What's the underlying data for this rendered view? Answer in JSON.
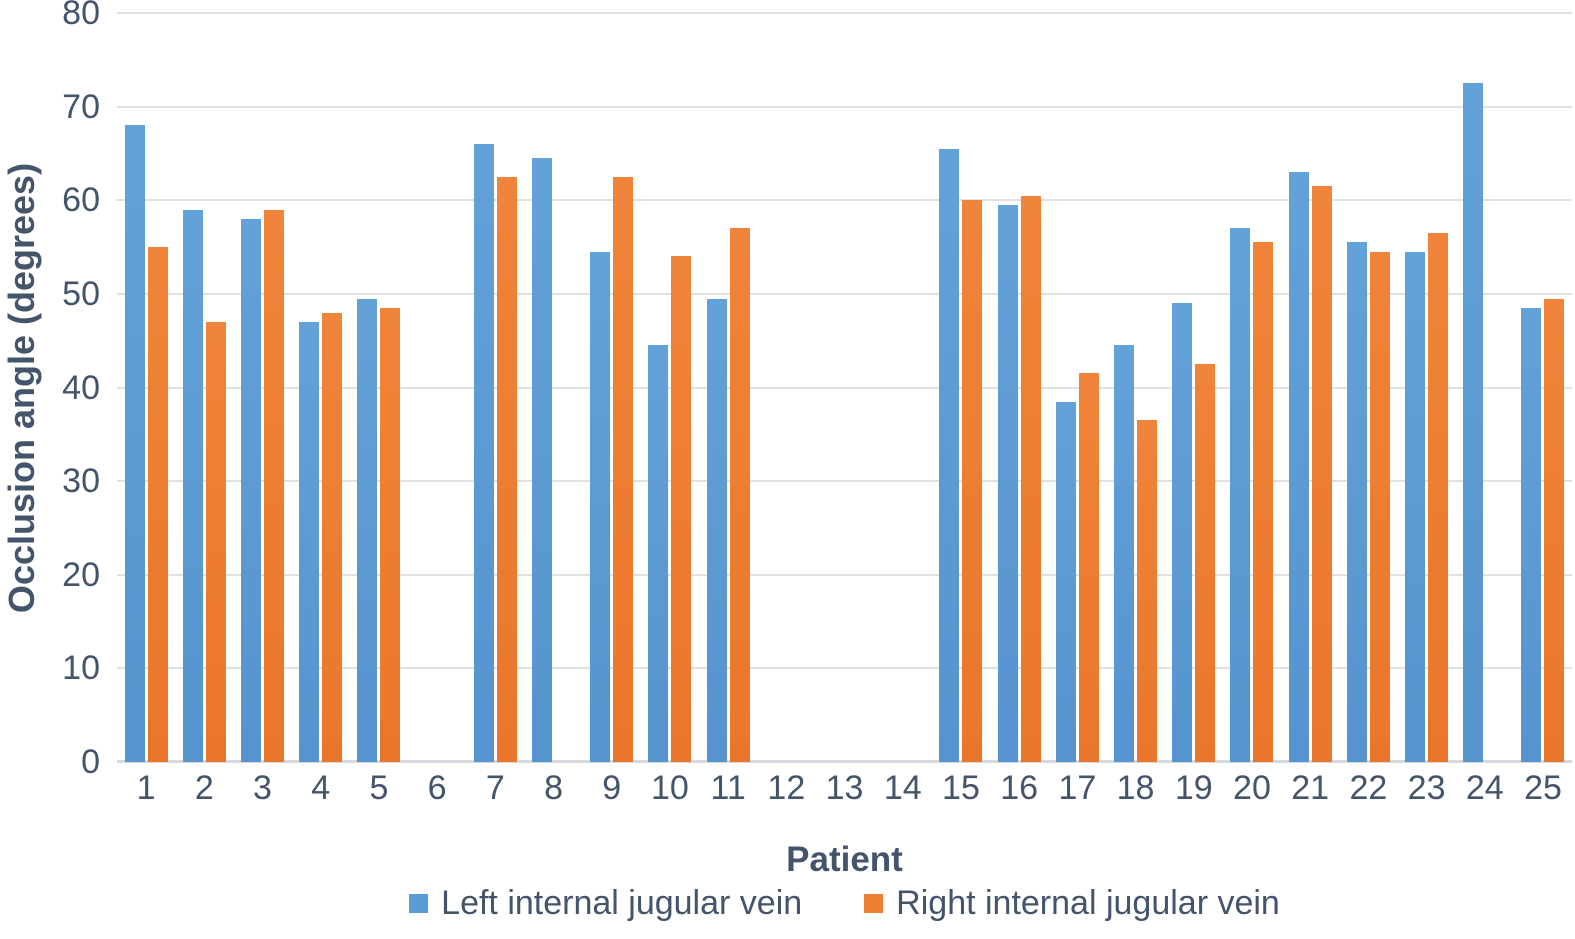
{
  "chart_data": {
    "type": "bar",
    "title": "",
    "xlabel": "Patient",
    "ylabel": "Occlusion angle (degrees)",
    "ylim": [
      0,
      80
    ],
    "y_ticks": [
      0,
      10,
      20,
      30,
      40,
      50,
      60,
      70,
      80
    ],
    "grid": true,
    "legend_position": "bottom",
    "categories": [
      "1",
      "2",
      "3",
      "4",
      "5",
      "6",
      "7",
      "8",
      "9",
      "10",
      "11",
      "12",
      "13",
      "14",
      "15",
      "16",
      "17",
      "18",
      "19",
      "20",
      "21",
      "22",
      "23",
      "24",
      "25"
    ],
    "series": [
      {
        "name": "Left internal jugular vein",
        "color": "#5B9BD5",
        "values": [
          68,
          59,
          58,
          47,
          49.5,
          null,
          66,
          64.5,
          54.5,
          44.5,
          49.5,
          null,
          null,
          null,
          65.5,
          59.5,
          38.5,
          44.5,
          49,
          57,
          63,
          55.5,
          54.5,
          72.5,
          48.5
        ]
      },
      {
        "name": "Right internal jugular vein",
        "color": "#ED7D31",
        "values": [
          55,
          47,
          59,
          48,
          48.5,
          null,
          62.5,
          null,
          62.5,
          54,
          57,
          null,
          null,
          null,
          60,
          60.5,
          41.5,
          36.5,
          42.5,
          55.5,
          61.5,
          54.5,
          56.5,
          null,
          49.5
        ]
      }
    ],
    "colors": {
      "axis_text": "#44546A",
      "gridline": "#DFE1E6",
      "background": "#FFFFFF"
    }
  }
}
